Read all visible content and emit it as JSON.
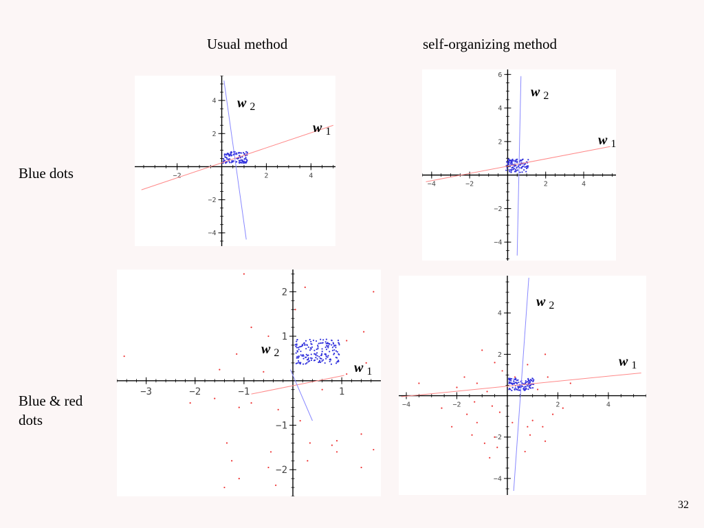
{
  "headings": {
    "usual": "Usual method",
    "self_org": "self-organizing method"
  },
  "row_labels": {
    "blue": "Blue dots",
    "blue_red_line1": "Blue & red",
    "blue_red_line2": "dots"
  },
  "page_number": "32",
  "colors": {
    "blue_points": "#3333dd",
    "red_points": "#ee3333",
    "w1_line": "#ff8888",
    "w2_line": "#8888ff",
    "axis": "#000000"
  },
  "vector_labels": {
    "w": "w",
    "sub1": "1",
    "sub2": "2"
  },
  "chart_data": [
    {
      "id": "blue-usual",
      "type": "scatter",
      "title": "",
      "xlabel": "",
      "ylabel": "",
      "xlim": [
        -3.9,
        5.1
      ],
      "ylim": [
        -4.8,
        5.5
      ],
      "xticks": [
        -2,
        2,
        4
      ],
      "yticks": [
        -4,
        -2,
        2,
        4
      ],
      "clusters": [
        {
          "series": "blue",
          "cx": 0.6,
          "cy": 0.55,
          "sx": 0.55,
          "sy": 0.35,
          "n": 110
        }
      ],
      "red_points": [],
      "w1": {
        "from": [
          -3.6,
          -1.4
        ],
        "to": [
          5.0,
          2.5
        ]
      },
      "w2": {
        "from": [
          0.1,
          5.2
        ],
        "to": [
          1.1,
          -4.4
        ]
      }
    },
    {
      "id": "blue-self",
      "type": "scatter",
      "title": "",
      "xlabel": "",
      "ylabel": "",
      "xlim": [
        -4.5,
        5.7
      ],
      "ylim": [
        -5.1,
        6.3
      ],
      "xticks": [
        -4,
        -2,
        2,
        4
      ],
      "yticks": [
        -4,
        -2,
        2,
        4,
        6
      ],
      "clusters": [
        {
          "series": "blue",
          "cx": 0.5,
          "cy": 0.55,
          "sx": 0.6,
          "sy": 0.4,
          "n": 110
        }
      ],
      "red_points": [],
      "w1": {
        "from": [
          -4.3,
          -0.4
        ],
        "to": [
          5.4,
          1.7
        ]
      },
      "w2": {
        "from": [
          0.7,
          5.9
        ],
        "to": [
          0.5,
          -4.8
        ]
      }
    },
    {
      "id": "bluered-usual",
      "type": "scatter",
      "title": "",
      "xlabel": "",
      "ylabel": "",
      "xlim": [
        -3.6,
        1.8
      ],
      "ylim": [
        -2.6,
        2.5
      ],
      "xticks": [
        -3,
        -2,
        -1,
        1
      ],
      "yticks": [
        -2,
        -1,
        1,
        2
      ],
      "clusters": [
        {
          "series": "blue",
          "cx": 0.5,
          "cy": 0.65,
          "sx": 0.45,
          "sy": 0.28,
          "n": 170
        }
      ],
      "red_points": [
        [
          -1.0,
          2.4
        ],
        [
          0.25,
          2.1
        ],
        [
          1.65,
          2.0
        ],
        [
          -0.85,
          1.2
        ],
        [
          -0.5,
          1.0
        ],
        [
          1.45,
          1.1
        ],
        [
          -1.15,
          0.6
        ],
        [
          -1.5,
          0.25
        ],
        [
          -3.45,
          0.55
        ],
        [
          -1.6,
          -0.4
        ],
        [
          -1.1,
          -0.6
        ],
        [
          -0.85,
          -0.5
        ],
        [
          -0.3,
          -0.65
        ],
        [
          -1.35,
          -1.4
        ],
        [
          -1.25,
          -1.8
        ],
        [
          -0.45,
          -1.6
        ],
        [
          -1.1,
          -2.2
        ],
        [
          -1.4,
          -2.4
        ],
        [
          -0.35,
          -2.35
        ],
        [
          0.35,
          -1.4
        ],
        [
          0.8,
          -1.45
        ],
        [
          0.9,
          -1.35
        ],
        [
          0.9,
          -1.6
        ],
        [
          1.4,
          -1.2
        ],
        [
          1.65,
          -1.55
        ],
        [
          1.4,
          -1.95
        ],
        [
          0.3,
          -1.8
        ],
        [
          -0.5,
          -1.95
        ],
        [
          1.1,
          0.15
        ],
        [
          0.6,
          -0.2
        ],
        [
          -2.1,
          -0.5
        ],
        [
          0.15,
          -0.9
        ],
        [
          1.1,
          0.9
        ],
        [
          -0.6,
          0.2
        ],
        [
          0.05,
          1.6
        ],
        [
          1.5,
          0.4
        ]
      ],
      "w1": {
        "from": [
          -0.85,
          -0.3
        ],
        "to": [
          1.05,
          0.12
        ]
      },
      "w2": {
        "from": [
          -0.05,
          0.25
        ],
        "to": [
          0.4,
          -0.9
        ]
      }
    },
    {
      "id": "bluered-self",
      "type": "scatter",
      "title": "",
      "xlabel": "",
      "ylabel": "",
      "xlim": [
        -4.3,
        5.5
      ],
      "ylim": [
        -4.8,
        5.8
      ],
      "xticks": [
        -4,
        -2,
        2,
        4
      ],
      "yticks": [
        -4,
        -2,
        2,
        4
      ],
      "clusters": [
        {
          "series": "blue",
          "cx": 0.55,
          "cy": 0.55,
          "sx": 0.5,
          "sy": 0.3,
          "n": 120
        }
      ],
      "red_points": [
        [
          -1.0,
          2.2
        ],
        [
          -0.5,
          1.6
        ],
        [
          1.5,
          2.0
        ],
        [
          0.8,
          1.5
        ],
        [
          -3.5,
          0.6
        ],
        [
          -2.0,
          0.4
        ],
        [
          -1.2,
          0.6
        ],
        [
          -0.8,
          0.2
        ],
        [
          -1.3,
          -0.3
        ],
        [
          -0.6,
          -0.5
        ],
        [
          -0.3,
          -0.8
        ],
        [
          -1.6,
          -0.9
        ],
        [
          -1.2,
          -1.3
        ],
        [
          -1.4,
          -1.9
        ],
        [
          -0.9,
          -2.3
        ],
        [
          -0.5,
          -2.0
        ],
        [
          -0.4,
          -2.5
        ],
        [
          -0.7,
          -3.0
        ],
        [
          0.2,
          -1.3
        ],
        [
          0.8,
          -1.5
        ],
        [
          1.0,
          -1.2
        ],
        [
          1.4,
          -1.5
        ],
        [
          0.9,
          -1.9
        ],
        [
          1.5,
          -2.2
        ],
        [
          0.7,
          -2.7
        ],
        [
          1.8,
          -0.9
        ],
        [
          2.2,
          -0.6
        ],
        [
          -0.2,
          1.2
        ],
        [
          2.5,
          0.6
        ],
        [
          -2.6,
          -0.6
        ],
        [
          0.3,
          0.9
        ],
        [
          -1.7,
          0.9
        ],
        [
          1.2,
          0.3
        ],
        [
          -2.2,
          -1.5
        ],
        [
          1.6,
          0.9
        ]
      ],
      "w1": {
        "from": [
          -4.2,
          -0.05
        ],
        "to": [
          5.3,
          1.1
        ]
      },
      "w2": {
        "from": [
          0.85,
          5.7
        ],
        "to": [
          0.25,
          -4.6
        ]
      }
    }
  ]
}
